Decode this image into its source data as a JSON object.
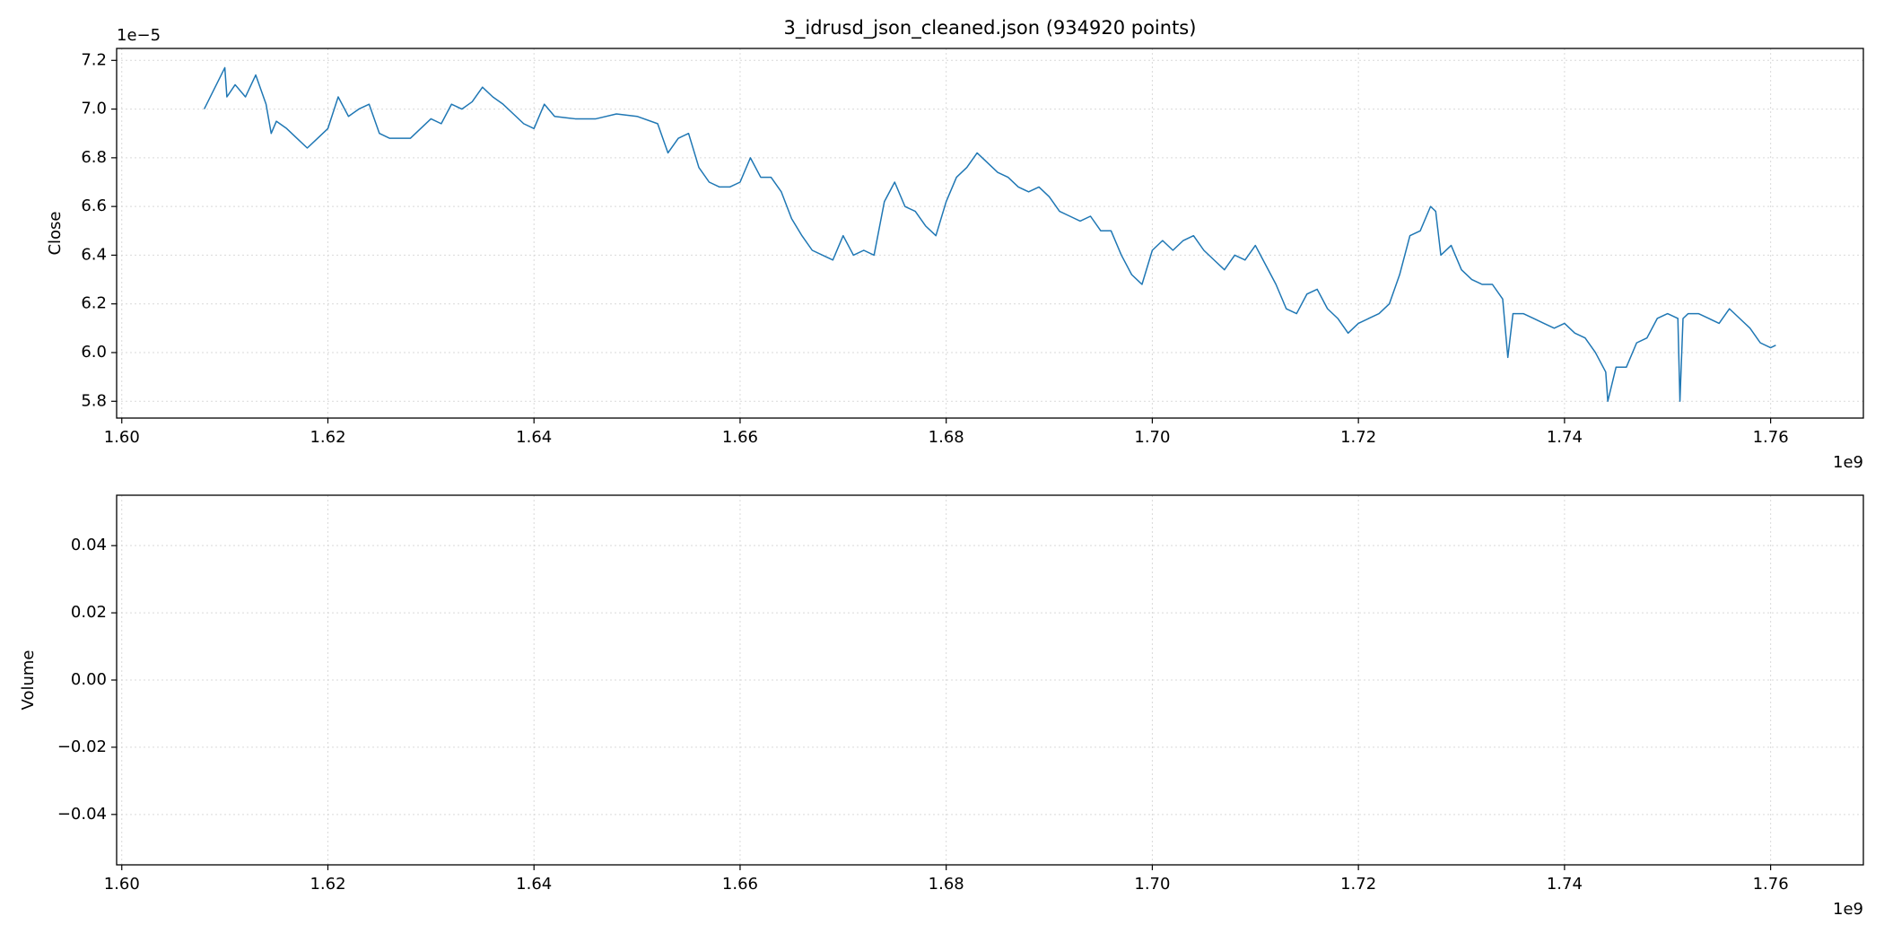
{
  "chart_data": [
    {
      "type": "line",
      "title": "3_idrusd_json_cleaned.json (934920 points)",
      "ylabel": "Close",
      "y_offset_label": "1e−5",
      "x_offset_label": "1e9",
      "xlim": [
        1.5995,
        1.769
      ],
      "xticks": [
        {
          "value": 1.6,
          "label": "1.60"
        },
        1.62,
        1.64,
        1.66,
        1.68,
        {
          "value": 1.7,
          "label": "1.70"
        },
        1.72,
        1.74,
        1.76
      ],
      "ylim": [
        5.731,
        7.249
      ],
      "yticks": [
        5.8,
        {
          "value": 6,
          "label": "6.0"
        },
        6.2,
        6.4,
        6.6,
        6.8,
        {
          "value": 7,
          "label": "7.0"
        },
        7.2
      ],
      "grid": true,
      "x": [
        1.608,
        1.61,
        1.6102,
        1.611,
        1.612,
        1.613,
        1.614,
        1.6145,
        1.615,
        1.616,
        1.617,
        1.618,
        1.619,
        1.62,
        1.621,
        1.622,
        1.623,
        1.624,
        1.625,
        1.626,
        1.628,
        1.629,
        1.63,
        1.631,
        1.632,
        1.633,
        1.634,
        1.635,
        1.636,
        1.637,
        1.638,
        1.639,
        1.64,
        1.641,
        1.642,
        1.644,
        1.646,
        1.648,
        1.65,
        1.652,
        1.653,
        1.654,
        1.655,
        1.656,
        1.657,
        1.658,
        1.659,
        1.66,
        1.661,
        1.662,
        1.663,
        1.664,
        1.665,
        1.666,
        1.667,
        1.668,
        1.669,
        1.67,
        1.671,
        1.672,
        1.673,
        1.674,
        1.675,
        1.676,
        1.677,
        1.678,
        1.679,
        1.68,
        1.681,
        1.682,
        1.683,
        1.684,
        1.685,
        1.686,
        1.687,
        1.688,
        1.689,
        1.69,
        1.691,
        1.692,
        1.693,
        1.694,
        1.695,
        1.696,
        1.697,
        1.698,
        1.699,
        1.7,
        1.701,
        1.702,
        1.703,
        1.704,
        1.705,
        1.706,
        1.707,
        1.708,
        1.709,
        1.71,
        1.711,
        1.712,
        1.713,
        1.714,
        1.715,
        1.716,
        1.717,
        1.718,
        1.719,
        1.72,
        1.721,
        1.722,
        1.723,
        1.724,
        1.725,
        1.726,
        1.727,
        1.7275,
        1.728,
        1.729,
        1.73,
        1.731,
        1.732,
        1.733,
        1.734,
        1.7345,
        1.735,
        1.736,
        1.737,
        1.738,
        1.739,
        1.74,
        1.741,
        1.742,
        1.743,
        1.744,
        1.7442,
        1.745,
        1.746,
        1.747,
        1.748,
        1.749,
        1.75,
        1.751,
        1.7512,
        1.7515,
        1.752,
        1.753,
        1.754,
        1.755,
        1.756,
        1.757,
        1.758,
        1.759,
        1.76,
        1.7605
      ],
      "series": [
        {
          "color": "#1f77b4",
          "values": [
            7.0,
            7.17,
            7.05,
            7.1,
            7.05,
            7.14,
            7.02,
            6.9,
            6.95,
            6.92,
            6.88,
            6.84,
            6.88,
            6.92,
            7.05,
            6.97,
            7.0,
            7.02,
            6.9,
            6.88,
            6.88,
            6.92,
            6.96,
            6.94,
            7.02,
            7.0,
            7.03,
            7.09,
            7.05,
            7.02,
            6.98,
            6.94,
            6.92,
            7.02,
            6.97,
            6.96,
            6.96,
            6.98,
            6.97,
            6.94,
            6.82,
            6.88,
            6.9,
            6.76,
            6.7,
            6.68,
            6.68,
            6.7,
            6.8,
            6.72,
            6.72,
            6.66,
            6.55,
            6.48,
            6.42,
            6.4,
            6.38,
            6.48,
            6.4,
            6.42,
            6.4,
            6.62,
            6.7,
            6.6,
            6.58,
            6.52,
            6.48,
            6.62,
            6.72,
            6.76,
            6.82,
            6.78,
            6.74,
            6.72,
            6.68,
            6.66,
            6.68,
            6.64,
            6.58,
            6.56,
            6.54,
            6.56,
            6.5,
            6.5,
            6.4,
            6.32,
            6.28,
            6.42,
            6.46,
            6.42,
            6.46,
            6.48,
            6.42,
            6.38,
            6.34,
            6.4,
            6.38,
            6.44,
            6.36,
            6.28,
            6.18,
            6.16,
            6.24,
            6.26,
            6.18,
            6.14,
            6.08,
            6.12,
            6.14,
            6.16,
            6.2,
            6.32,
            6.48,
            6.5,
            6.6,
            6.58,
            6.4,
            6.44,
            6.34,
            6.3,
            6.28,
            6.28,
            6.22,
            5.98,
            6.16,
            6.16,
            6.14,
            6.12,
            6.1,
            6.12,
            6.08,
            6.06,
            6.0,
            5.92,
            5.8,
            5.94,
            5.94,
            6.04,
            6.06,
            6.14,
            6.16,
            6.14,
            5.8,
            6.14,
            6.16,
            6.16,
            6.14,
            6.12,
            6.18,
            6.14,
            6.1,
            6.04,
            6.02,
            6.03
          ]
        }
      ]
    },
    {
      "type": "line",
      "ylabel": "Volume",
      "x_offset_label": "1e9",
      "xlim": [
        1.5995,
        1.769
      ],
      "xticks": [
        {
          "value": 1.6,
          "label": "1.60"
        },
        1.62,
        1.64,
        1.66,
        1.68,
        {
          "value": 1.7,
          "label": "1.70"
        },
        1.72,
        1.74,
        1.76
      ],
      "ylim": [
        -0.055,
        0.055
      ],
      "yticks": [
        {
          "value": -0.04,
          "label": "−0.04"
        },
        {
          "value": -0.02,
          "label": "−0.02"
        },
        {
          "value": 0,
          "label": "0.00"
        },
        0.02,
        0.04
      ],
      "grid": true
    }
  ]
}
